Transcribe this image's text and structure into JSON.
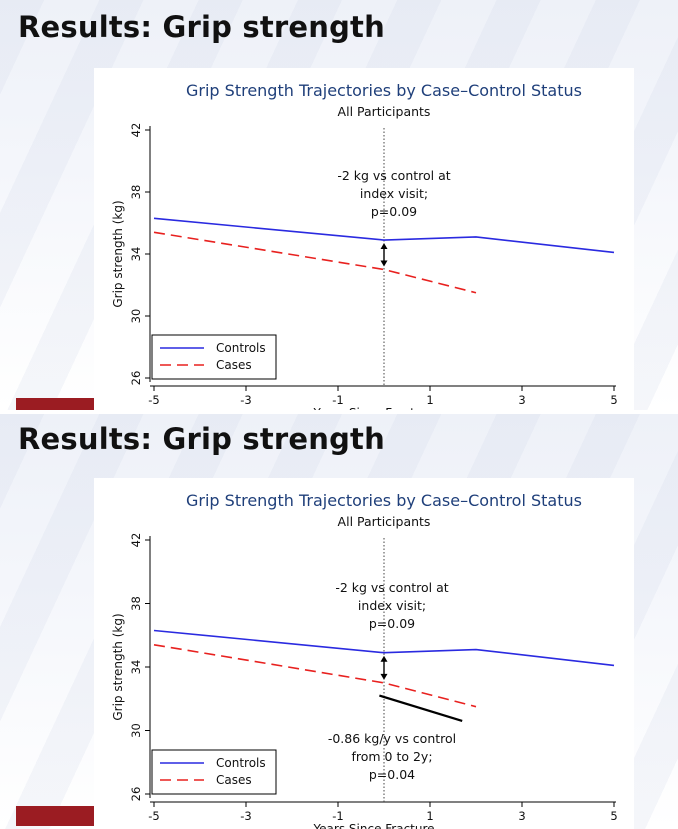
{
  "slides": [
    {
      "heading": "Results:  Grip strength",
      "chart_title": "Grip Strength Trajectories by Case–Control Status",
      "chart_subtitle": "All Participants",
      "annotation_diff": [
        "-2 kg vs control at",
        "index visit;",
        "p=0.09"
      ]
    },
    {
      "heading": "Results:  Grip strength",
      "chart_title": "Grip Strength Trajectories by Case–Control Status",
      "chart_subtitle": "All Participants",
      "annotation_diff": [
        "-2 kg vs control at",
        "index visit;",
        "p=0.09"
      ],
      "annotation_slope": [
        "-0.86 kg/y vs control",
        "from 0 to 2y;",
        "p=0.04"
      ]
    }
  ],
  "chart_data": [
    {
      "type": "line",
      "xlabel": "Years Since Fracture",
      "ylabel": "Grip strength (kg)",
      "xlim": [
        -5,
        5
      ],
      "ylim": [
        26,
        42
      ],
      "xticks": [
        -5,
        -3,
        -1,
        1,
        3,
        5
      ],
      "yticks": [
        26,
        30,
        34,
        38,
        42
      ],
      "vline_x": 0,
      "grid": false,
      "legend_position": "bottom-left",
      "series": [
        {
          "name": "Controls",
          "color": "#2a2ae0",
          "style": "solid",
          "x": [
            -5,
            0,
            2,
            5
          ],
          "y": [
            36.3,
            34.9,
            35.1,
            34.1
          ]
        },
        {
          "name": "Cases",
          "color": "#e8211f",
          "style": "dashed",
          "x": [
            -5,
            0,
            2
          ],
          "y": [
            35.4,
            33.0,
            31.5
          ]
        }
      ]
    },
    {
      "type": "line",
      "xlabel": "Years Since Fracture",
      "ylabel": "Grip strength (kg)",
      "xlim": [
        -5,
        5
      ],
      "ylim": [
        26,
        42
      ],
      "xticks": [
        -5,
        -3,
        -1,
        1,
        3,
        5
      ],
      "yticks": [
        26,
        30,
        34,
        38,
        42
      ],
      "vline_x": 0,
      "grid": false,
      "legend_position": "bottom-left",
      "series": [
        {
          "name": "Controls",
          "color": "#2a2ae0",
          "style": "solid",
          "x": [
            -5,
            0,
            2,
            5
          ],
          "y": [
            36.3,
            34.9,
            35.1,
            34.1
          ]
        },
        {
          "name": "Cases",
          "color": "#e8211f",
          "style": "dashed",
          "x": [
            -5,
            0,
            2
          ],
          "y": [
            35.4,
            33.0,
            31.5
          ]
        }
      ],
      "slope_line": {
        "x": [
          -0.1,
          1.7
        ],
        "y": [
          32.2,
          30.6
        ],
        "color": "#000000"
      }
    }
  ]
}
